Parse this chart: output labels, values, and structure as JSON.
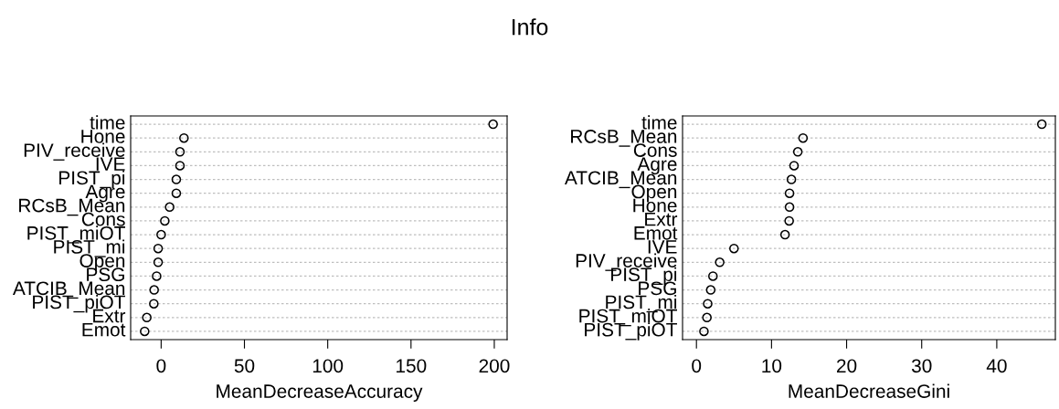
{
  "chart_data": [
    {
      "type": "scatter",
      "orientation": "horizontal",
      "title": "Info",
      "xlabel": "MeanDecreaseAccuracy",
      "categories": [
        "time",
        "Hone",
        "PIV_receive",
        "IVE",
        "PIST_pi",
        "Agre",
        "RCsB_Mean",
        "Cons",
        "PIST_miOT",
        "PIST_mi",
        "Open",
        "PSG",
        "ATCIB_Mean",
        "PIST_piOT",
        "Extr",
        "Emot"
      ],
      "series": [
        {
          "color": "#000000",
          "values": [
            199.3,
            13.7,
            11.3,
            11.3,
            9.1,
            9.1,
            5.1,
            2.2,
            0,
            -1.8,
            -1.8,
            -2.7,
            -4.2,
            -4.4,
            -8.6,
            -9.9
          ]
        }
      ],
      "xlim": [
        -18.3,
        207.7
      ],
      "xticks": [
        0,
        50,
        100,
        150,
        200
      ],
      "grid": "y",
      "marker": "circle"
    },
    {
      "type": "scatter",
      "orientation": "horizontal",
      "xlabel": "MeanDecreaseGini",
      "categories": [
        "time",
        "RCsB_Mean",
        "Cons",
        "Agre",
        "ATCIB_Mean",
        "Open",
        "Hone",
        "Extr",
        "Emot",
        "IVE",
        "PIV_receive",
        "PIST_pi",
        "PSG",
        "PIST_mi",
        "PIST_miOT",
        "PIST_piOT"
      ],
      "series": [
        {
          "color": "#000000",
          "values": [
            46.0,
            14.2,
            13.5,
            13.0,
            12.65,
            12.4,
            12.4,
            12.35,
            11.8,
            5.0,
            3.1,
            2.2,
            1.9,
            1.5,
            1.4,
            1.0
          ]
        }
      ],
      "xlim": [
        -1.85,
        47.8
      ],
      "xticks": [
        0,
        10,
        20,
        30,
        40
      ],
      "grid": "y",
      "marker": "circle"
    }
  ]
}
